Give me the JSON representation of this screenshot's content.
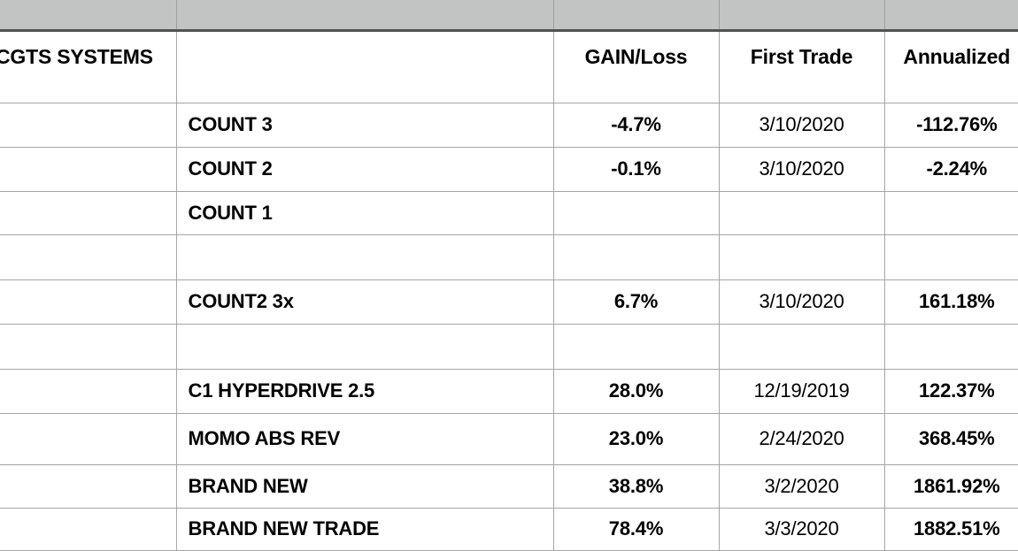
{
  "colors": {
    "header_strip": "#c2c3c3",
    "strip_separator": "#9e9e9e",
    "strip_divider": "#515151",
    "gridline": "#a6a6a6",
    "text": "#000000",
    "background": "#ffffff"
  },
  "sheet": {
    "title": "CGTS SYSTEMS",
    "columns": [
      {
        "label": ""
      },
      {
        "label": "GAIN/Loss"
      },
      {
        "label": "First Trade"
      },
      {
        "label": "Annualized"
      }
    ],
    "rows": [
      {
        "name": "COUNT 3",
        "gain": "-4.7%",
        "first_trade": "3/10/2020",
        "annualized": "-112.76%"
      },
      {
        "name": "COUNT 2",
        "gain": "-0.1%",
        "first_trade": "3/10/2020",
        "annualized": "-2.24%"
      },
      {
        "name": "COUNT 1",
        "gain": "",
        "first_trade": "",
        "annualized": ""
      },
      {
        "name": "",
        "gain": "",
        "first_trade": "",
        "annualized": ""
      },
      {
        "name": "COUNT2 3x",
        "gain": "6.7%",
        "first_trade": "3/10/2020",
        "annualized": "161.18%"
      },
      {
        "name": "",
        "gain": "",
        "first_trade": "",
        "annualized": ""
      },
      {
        "name": "C1 HYPERDRIVE 2.5",
        "gain": "28.0%",
        "first_trade": "12/19/2019",
        "annualized": "122.37%"
      },
      {
        "name": "MOMO ABS REV",
        "gain": "23.0%",
        "first_trade": "2/24/2020",
        "annualized": "368.45%"
      },
      {
        "name": "BRAND NEW",
        "gain": "38.8%",
        "first_trade": "3/2/2020",
        "annualized": "1861.92%"
      },
      {
        "name": "BRAND NEW TRADE",
        "gain": "78.4%",
        "first_trade": "3/3/2020",
        "annualized": "1882.51%"
      }
    ]
  }
}
